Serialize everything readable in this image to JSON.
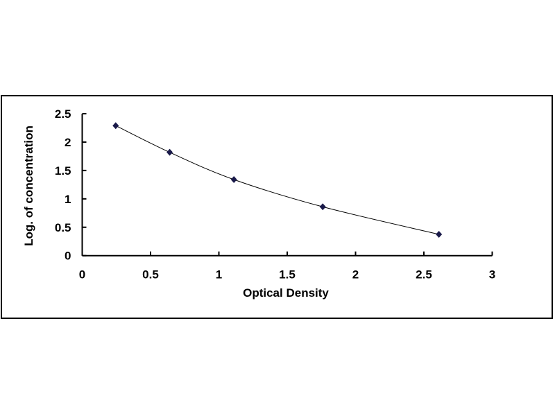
{
  "chart_data": {
    "type": "scatter",
    "title": "",
    "xlabel": "Optical Density",
    "ylabel": "Log. of concentration",
    "xlim": [
      0,
      3
    ],
    "ylim": [
      0,
      2.5
    ],
    "xticks": [
      "0",
      "0.5",
      "1",
      "1.5",
      "2",
      "2.5",
      "3"
    ],
    "yticks": [
      "0",
      "0.5",
      "1",
      "1.5",
      "2",
      "2.5"
    ],
    "grid": false,
    "trendline": "smooth curve",
    "marker": "diamond",
    "color": "#1a1a4a",
    "series": [
      {
        "x": [
          0.245,
          0.64,
          1.11,
          1.76,
          2.61
        ],
        "y": [
          2.29,
          1.82,
          1.34,
          0.86,
          0.375
        ]
      }
    ]
  }
}
